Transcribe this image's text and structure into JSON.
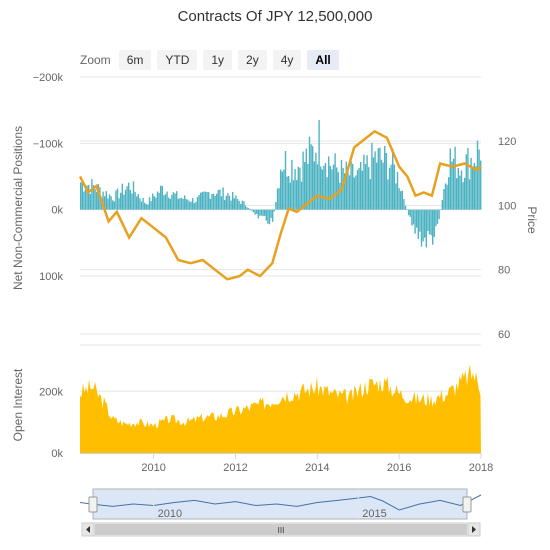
{
  "title": "Contracts Of JPY 12,500,000",
  "zoom": {
    "label": "Zoom",
    "buttons": [
      {
        "label": "6m",
        "active": false
      },
      {
        "label": "YTD",
        "active": false
      },
      {
        "label": "1y",
        "active": false
      },
      {
        "label": "2y",
        "active": false
      },
      {
        "label": "4y",
        "active": false
      },
      {
        "label": "All",
        "active": true
      }
    ]
  },
  "colors": {
    "positions": "#4fb3c4",
    "price": "#e8a020",
    "open_interest": "#ffbf00",
    "navigator_fill": "#dbe6f6",
    "navigator_line": "#4572a7"
  },
  "chart_data": [
    {
      "type": "area",
      "name": "positions-panel",
      "x_range": [
        2008.2,
        2018.0
      ],
      "x_ticks": [
        "2010",
        "2012",
        "2014",
        "2016",
        "2018"
      ],
      "ylabel": "Net Non-Commercial Positions",
      "ylabel_right": "Price",
      "y_left_range": [
        -200000,
        100000
      ],
      "y_left_reversed": true,
      "y_left_ticks": [
        "−200k",
        "−100k",
        "0k",
        "100k"
      ],
      "y_right_range": [
        60,
        130
      ],
      "y_right_ticks": [
        "60",
        "80",
        "100",
        "120"
      ],
      "grid": true,
      "series": [
        {
          "kind": "column",
          "x": [
            2008.2,
            2008.6,
            2009.0,
            2009.4,
            2009.8,
            2010.2,
            2010.6,
            2011.0,
            2011.4,
            2011.8,
            2012.2,
            2012.6,
            2012.9,
            2013.1,
            2013.5,
            2013.9,
            2014.0,
            2014.3,
            2014.6,
            2015.0,
            2015.4,
            2015.8,
            2016.0,
            2016.3,
            2016.6,
            2016.9,
            2017.2,
            2017.5,
            2017.8,
            2018.0
          ],
          "values": [
            -45000,
            -35000,
            -20000,
            -40000,
            -10000,
            -35000,
            -20000,
            -15000,
            -30000,
            -25000,
            -10000,
            15000,
            20000,
            -80000,
            -70000,
            -95000,
            -115000,
            -75000,
            -60000,
            -55000,
            -85000,
            -75000,
            -45000,
            30000,
            50000,
            40000,
            -85000,
            -70000,
            -85000,
            -105000
          ]
        },
        {
          "kind": "line",
          "x": [
            2008.2,
            2008.4,
            2008.6,
            2008.9,
            2009.1,
            2009.4,
            2009.7,
            2010.0,
            2010.3,
            2010.6,
            2010.9,
            2011.2,
            2011.5,
            2011.8,
            2012.1,
            2012.3,
            2012.6,
            2012.9,
            2013.1,
            2013.3,
            2013.5,
            2013.8,
            2014.0,
            2014.3,
            2014.6,
            2014.9,
            2015.1,
            2015.4,
            2015.7,
            2016.0,
            2016.2,
            2016.4,
            2016.6,
            2016.8,
            2017.0,
            2017.3,
            2017.6,
            2017.9,
            2018.0
          ],
          "values": [
            109,
            104,
            106,
            95,
            98,
            90,
            96,
            93,
            90,
            83,
            82,
            83,
            80,
            77,
            78,
            80,
            78,
            82,
            91,
            99,
            98,
            101,
            103,
            102,
            105,
            118,
            120,
            123,
            121,
            112,
            109,
            103,
            104,
            103,
            113,
            112,
            113,
            111,
            112
          ]
        }
      ]
    },
    {
      "type": "area",
      "name": "open-interest-panel",
      "x_range": [
        2008.2,
        2018.0
      ],
      "ylabel": "Open Interest",
      "y_range": [
        0,
        350000
      ],
      "y_ticks": [
        "0k",
        "200k"
      ],
      "grid": true,
      "x": [
        2008.2,
        2008.5,
        2008.8,
        2009.0,
        2009.3,
        2009.6,
        2010.0,
        2010.4,
        2010.8,
        2011.2,
        2011.6,
        2012.0,
        2012.4,
        2012.8,
        2013.2,
        2013.6,
        2014.0,
        2014.4,
        2014.8,
        2015.2,
        2015.6,
        2016.0,
        2016.4,
        2016.8,
        2017.2,
        2017.6,
        2017.8,
        2018.0
      ],
      "values": [
        195000,
        215000,
        160000,
        110000,
        95000,
        100000,
        90000,
        110000,
        100000,
        115000,
        120000,
        135000,
        150000,
        165000,
        190000,
        200000,
        215000,
        190000,
        180000,
        220000,
        230000,
        195000,
        175000,
        175000,
        195000,
        240000,
        260000,
        210000
      ]
    },
    {
      "type": "line",
      "name": "navigator",
      "x_range": [
        2008.2,
        2018.0
      ],
      "x_ticks": [
        "2010",
        "2015"
      ],
      "x": [
        2008.2,
        2008.6,
        2009.0,
        2009.5,
        2010.0,
        2010.5,
        2011.0,
        2011.5,
        2012.0,
        2012.5,
        2013.0,
        2013.5,
        2014.0,
        2014.5,
        2015.0,
        2015.3,
        2015.6,
        2016.0,
        2016.5,
        2017.0,
        2017.5,
        2018.0
      ],
      "values": [
        0.55,
        0.48,
        0.42,
        0.5,
        0.45,
        0.55,
        0.62,
        0.5,
        0.58,
        0.45,
        0.5,
        0.42,
        0.55,
        0.62,
        0.7,
        0.75,
        0.6,
        0.3,
        0.5,
        0.62,
        0.45,
        0.8
      ],
      "scrollbar_label": "III"
    }
  ]
}
